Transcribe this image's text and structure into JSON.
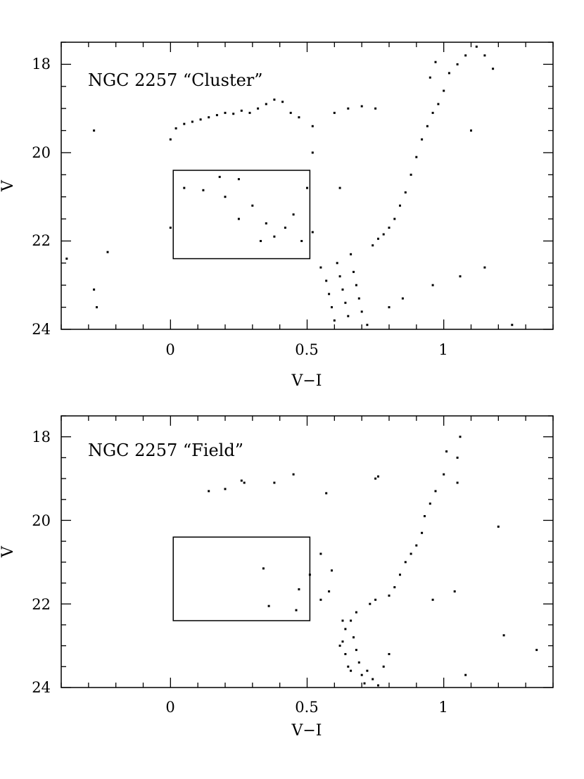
{
  "chart_data": [
    {
      "type": "scatter",
      "title": "NGC 2257 “Cluster”",
      "xlabel": "V−I",
      "ylabel": "V",
      "xlim": [
        -0.4,
        1.4
      ],
      "ylim": [
        24,
        17.5
      ],
      "y_inverted": true,
      "xticks": [
        0,
        0.5,
        1
      ],
      "xtick_labels": [
        "0",
        "0.5",
        "1"
      ],
      "yticks": [
        18,
        20,
        22,
        24
      ],
      "ytick_labels": [
        "18",
        "20",
        "22",
        "24"
      ],
      "grid": false,
      "legend": "none",
      "box": {
        "x": [
          0.01,
          0.51
        ],
        "y": [
          20.4,
          22.4
        ]
      },
      "series": [
        {
          "values": [
            {
              "x": -0.28,
              "y": 19.5
            },
            {
              "x": -0.23,
              "y": 22.25
            },
            {
              "x": -0.28,
              "y": 23.1
            },
            {
              "x": -0.27,
              "y": 23.5
            },
            {
              "x": -0.38,
              "y": 22.4
            },
            {
              "x": 0.0,
              "y": 19.7
            },
            {
              "x": 0.02,
              "y": 19.45
            },
            {
              "x": 0.05,
              "y": 19.35
            },
            {
              "x": 0.08,
              "y": 19.3
            },
            {
              "x": 0.11,
              "y": 19.25
            },
            {
              "x": 0.14,
              "y": 19.2
            },
            {
              "x": 0.17,
              "y": 19.15
            },
            {
              "x": 0.2,
              "y": 19.1
            },
            {
              "x": 0.23,
              "y": 19.12
            },
            {
              "x": 0.26,
              "y": 19.05
            },
            {
              "x": 0.29,
              "y": 19.1
            },
            {
              "x": 0.32,
              "y": 19.0
            },
            {
              "x": 0.35,
              "y": 18.9
            },
            {
              "x": 0.38,
              "y": 18.8
            },
            {
              "x": 0.41,
              "y": 18.85
            },
            {
              "x": 0.44,
              "y": 19.1
            },
            {
              "x": 0.47,
              "y": 19.2
            },
            {
              "x": 0.52,
              "y": 19.4
            },
            {
              "x": 0.6,
              "y": 19.1
            },
            {
              "x": 0.65,
              "y": 19.0
            },
            {
              "x": 0.7,
              "y": 18.95
            },
            {
              "x": 0.75,
              "y": 19.0
            },
            {
              "x": 0.05,
              "y": 20.8
            },
            {
              "x": 0.12,
              "y": 20.85
            },
            {
              "x": 0.18,
              "y": 20.55
            },
            {
              "x": 0.25,
              "y": 20.6
            },
            {
              "x": 0.2,
              "y": 21.0
            },
            {
              "x": 0.25,
              "y": 21.5
            },
            {
              "x": 0.3,
              "y": 21.2
            },
            {
              "x": 0.35,
              "y": 21.6
            },
            {
              "x": 0.38,
              "y": 21.9
            },
            {
              "x": 0.42,
              "y": 21.7
            },
            {
              "x": 0.45,
              "y": 21.4
            },
            {
              "x": 0.48,
              "y": 22.0
            },
            {
              "x": 0.5,
              "y": 20.8
            },
            {
              "x": 0.52,
              "y": 21.8
            },
            {
              "x": 0.55,
              "y": 22.6
            },
            {
              "x": 0.57,
              "y": 22.9
            },
            {
              "x": 0.58,
              "y": 23.2
            },
            {
              "x": 0.59,
              "y": 23.5
            },
            {
              "x": 0.6,
              "y": 23.8
            },
            {
              "x": 0.61,
              "y": 22.5
            },
            {
              "x": 0.62,
              "y": 22.8
            },
            {
              "x": 0.63,
              "y": 23.1
            },
            {
              "x": 0.64,
              "y": 23.4
            },
            {
              "x": 0.65,
              "y": 23.7
            },
            {
              "x": 0.66,
              "y": 22.3
            },
            {
              "x": 0.67,
              "y": 22.7
            },
            {
              "x": 0.68,
              "y": 23.0
            },
            {
              "x": 0.69,
              "y": 23.3
            },
            {
              "x": 0.7,
              "y": 23.6
            },
            {
              "x": 0.72,
              "y": 23.9
            },
            {
              "x": 0.74,
              "y": 22.1
            },
            {
              "x": 0.76,
              "y": 21.95
            },
            {
              "x": 0.78,
              "y": 21.85
            },
            {
              "x": 0.8,
              "y": 21.7
            },
            {
              "x": 0.82,
              "y": 21.5
            },
            {
              "x": 0.84,
              "y": 21.2
            },
            {
              "x": 0.86,
              "y": 20.9
            },
            {
              "x": 0.88,
              "y": 20.5
            },
            {
              "x": 0.9,
              "y": 20.1
            },
            {
              "x": 0.92,
              "y": 19.7
            },
            {
              "x": 0.94,
              "y": 19.4
            },
            {
              "x": 0.96,
              "y": 19.1
            },
            {
              "x": 0.98,
              "y": 18.9
            },
            {
              "x": 1.0,
              "y": 18.6
            },
            {
              "x": 1.02,
              "y": 18.2
            },
            {
              "x": 1.05,
              "y": 18.0
            },
            {
              "x": 1.08,
              "y": 17.8
            },
            {
              "x": 1.12,
              "y": 17.6
            },
            {
              "x": 1.15,
              "y": 17.8
            },
            {
              "x": 1.18,
              "y": 18.1
            },
            {
              "x": 0.97,
              "y": 17.95
            },
            {
              "x": 0.95,
              "y": 18.3
            },
            {
              "x": 1.1,
              "y": 19.5
            },
            {
              "x": 1.15,
              "y": 22.6
            },
            {
              "x": 1.06,
              "y": 22.8
            },
            {
              "x": 0.96,
              "y": 23.0
            },
            {
              "x": 1.25,
              "y": 23.9
            },
            {
              "x": 0.85,
              "y": 23.3
            },
            {
              "x": 0.8,
              "y": 23.5
            },
            {
              "x": 0.52,
              "y": 20.0
            },
            {
              "x": 0.62,
              "y": 20.8
            },
            {
              "x": 0.0,
              "y": 21.7
            },
            {
              "x": 0.33,
              "y": 22.0
            }
          ]
        }
      ]
    },
    {
      "type": "scatter",
      "title": "NGC 2257 “Field”",
      "xlabel": "V−I",
      "ylabel": "V",
      "xlim": [
        -0.4,
        1.4
      ],
      "ylim": [
        24,
        17.5
      ],
      "y_inverted": true,
      "xticks": [
        0,
        0.5,
        1
      ],
      "xtick_labels": [
        "0",
        "0.5",
        "1"
      ],
      "yticks": [
        18,
        20,
        22,
        24
      ],
      "ytick_labels": [
        "18",
        "20",
        "22",
        "24"
      ],
      "grid": false,
      "legend": "none",
      "box": {
        "x": [
          0.01,
          0.51
        ],
        "y": [
          20.4,
          22.4
        ]
      },
      "series": [
        {
          "values": [
            {
              "x": 0.14,
              "y": 19.3
            },
            {
              "x": 0.2,
              "y": 19.25
            },
            {
              "x": 0.26,
              "y": 19.05
            },
            {
              "x": 0.27,
              "y": 19.1
            },
            {
              "x": 0.38,
              "y": 19.1
            },
            {
              "x": 0.45,
              "y": 18.9
            },
            {
              "x": 0.57,
              "y": 19.35
            },
            {
              "x": 0.75,
              "y": 19.0
            },
            {
              "x": 0.76,
              "y": 18.95
            },
            {
              "x": 0.34,
              "y": 21.15
            },
            {
              "x": 0.36,
              "y": 22.05
            },
            {
              "x": 0.46,
              "y": 22.15
            },
            {
              "x": 0.47,
              "y": 21.65
            },
            {
              "x": 0.51,
              "y": 21.3
            },
            {
              "x": 0.55,
              "y": 20.8
            },
            {
              "x": 0.59,
              "y": 21.2
            },
            {
              "x": 0.55,
              "y": 21.9
            },
            {
              "x": 0.64,
              "y": 22.6
            },
            {
              "x": 0.63,
              "y": 22.9
            },
            {
              "x": 0.64,
              "y": 23.2
            },
            {
              "x": 0.65,
              "y": 23.5
            },
            {
              "x": 0.66,
              "y": 22.4
            },
            {
              "x": 0.67,
              "y": 22.8
            },
            {
              "x": 0.68,
              "y": 23.1
            },
            {
              "x": 0.69,
              "y": 23.4
            },
            {
              "x": 0.7,
              "y": 23.7
            },
            {
              "x": 0.71,
              "y": 23.9
            },
            {
              "x": 0.72,
              "y": 23.6
            },
            {
              "x": 0.74,
              "y": 23.8
            },
            {
              "x": 0.76,
              "y": 23.95
            },
            {
              "x": 0.78,
              "y": 23.5
            },
            {
              "x": 0.8,
              "y": 23.2
            },
            {
              "x": 0.75,
              "y": 21.9
            },
            {
              "x": 0.8,
              "y": 21.8
            },
            {
              "x": 0.82,
              "y": 21.6
            },
            {
              "x": 0.84,
              "y": 21.3
            },
            {
              "x": 0.86,
              "y": 21.0
            },
            {
              "x": 0.88,
              "y": 20.8
            },
            {
              "x": 0.9,
              "y": 20.6
            },
            {
              "x": 0.92,
              "y": 20.3
            },
            {
              "x": 0.93,
              "y": 19.9
            },
            {
              "x": 0.95,
              "y": 19.6
            },
            {
              "x": 0.97,
              "y": 19.3
            },
            {
              "x": 1.0,
              "y": 18.9
            },
            {
              "x": 1.01,
              "y": 18.35
            },
            {
              "x": 1.05,
              "y": 18.5
            },
            {
              "x": 1.06,
              "y": 18.0
            },
            {
              "x": 1.05,
              "y": 19.1
            },
            {
              "x": 1.2,
              "y": 20.15
            },
            {
              "x": 1.22,
              "y": 22.75
            },
            {
              "x": 1.34,
              "y": 23.1
            },
            {
              "x": 1.08,
              "y": 23.7
            },
            {
              "x": 1.04,
              "y": 21.7
            },
            {
              "x": 0.96,
              "y": 21.9
            },
            {
              "x": 0.63,
              "y": 22.4
            },
            {
              "x": 0.62,
              "y": 23.0
            },
            {
              "x": 0.66,
              "y": 23.6
            },
            {
              "x": 0.68,
              "y": 22.2
            },
            {
              "x": 0.58,
              "y": 21.7
            },
            {
              "x": 0.73,
              "y": 22.0
            }
          ]
        }
      ]
    }
  ]
}
